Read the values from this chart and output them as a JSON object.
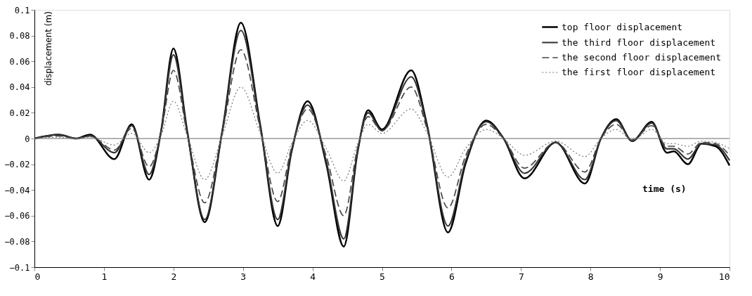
{
  "chart_data": {
    "type": "line",
    "xlabel": "time (s)",
    "ylabel": "displacement (m)",
    "x": [
      0,
      0.35,
      0.6,
      0.8,
      1.15,
      1.4,
      1.65,
      1.82,
      2.0,
      2.2,
      2.45,
      2.7,
      2.97,
      3.25,
      3.5,
      3.7,
      3.93,
      4.2,
      4.45,
      4.65,
      4.8,
      5.0,
      5.42,
      5.65,
      5.95,
      6.2,
      6.5,
      6.75,
      7.05,
      7.5,
      7.92,
      8.15,
      8.37,
      8.6,
      8.88,
      9.1,
      9.2,
      9.4,
      9.6,
      9.8,
      10
    ],
    "series": [
      {
        "name": "top floor displacement",
        "color": "#000000",
        "line_style": "solid",
        "values": [
          0,
          0.003,
          0,
          0.003,
          -0.016,
          0.011,
          -0.032,
          0.005,
          0.07,
          0.005,
          -0.065,
          0.005,
          0.09,
          0.01,
          -0.068,
          -0.01,
          0.029,
          -0.02,
          -0.084,
          -0.01,
          0.022,
          0.007,
          0.053,
          0.01,
          -0.073,
          -0.02,
          0.014,
          0.0,
          -0.031,
          -0.003,
          -0.035,
          0.0,
          0.015,
          -0.002,
          0.013,
          -0.011,
          -0.01,
          -0.02,
          -0.004,
          -0.006,
          -0.021
        ]
      },
      {
        "name": "the third floor displacement",
        "color": "#333333",
        "line_style": "solid",
        "values": [
          0,
          0.003,
          0,
          0.002,
          -0.011,
          0.01,
          -0.028,
          0.005,
          0.065,
          0.004,
          -0.063,
          0.005,
          0.084,
          0.009,
          -0.063,
          -0.009,
          0.026,
          -0.018,
          -0.078,
          -0.009,
          0.02,
          0.006,
          0.048,
          0.009,
          -0.068,
          -0.018,
          0.013,
          0,
          -0.027,
          -0.003,
          -0.032,
          0,
          0.014,
          -0.002,
          0.012,
          -0.008,
          -0.008,
          -0.016,
          -0.004,
          -0.005,
          -0.017
        ]
      },
      {
        "name": "the second floor displacement",
        "color": "#444444",
        "line_style": "dashed",
        "values": [
          0,
          0.002,
          0,
          0.002,
          -0.009,
          0.008,
          -0.022,
          0.004,
          0.053,
          0.003,
          -0.05,
          0.004,
          0.069,
          0.007,
          -0.049,
          -0.007,
          0.023,
          -0.014,
          -0.06,
          -0.007,
          0.017,
          0.006,
          0.04,
          0.007,
          -0.054,
          -0.014,
          0.011,
          0,
          -0.023,
          -0.003,
          -0.026,
          0,
          0.011,
          -0.001,
          0.01,
          -0.006,
          -0.006,
          -0.012,
          -0.003,
          -0.004,
          -0.013
        ]
      },
      {
        "name": "the first floor displacement",
        "color": "#777777",
        "line_style": "dotted",
        "values": [
          0,
          0.001,
          0,
          0.001,
          -0.005,
          0.004,
          -0.011,
          0.002,
          0.029,
          0.002,
          -0.032,
          0.002,
          0.04,
          0.004,
          -0.027,
          -0.004,
          0.014,
          -0.008,
          -0.033,
          -0.004,
          0.011,
          0.004,
          0.023,
          0.004,
          -0.03,
          -0.008,
          0.007,
          0,
          -0.013,
          -0.002,
          -0.014,
          0,
          0.007,
          -0.001,
          0.007,
          -0.004,
          -0.004,
          -0.006,
          -0.002,
          -0.003,
          -0.008
        ]
      }
    ],
    "xlim": [
      0,
      10
    ],
    "xticks": [
      0,
      1,
      2,
      3,
      4,
      5,
      6,
      7,
      8,
      9,
      10
    ],
    "ylim": [
      -0.1,
      0.1
    ],
    "yticks": [
      -0.1,
      -0.08,
      -0.06,
      -0.04,
      -0.02,
      0,
      0.02,
      0.04,
      0.06,
      0.08,
      0.1
    ],
    "ref_lines": [
      {
        "axis": "y",
        "value": 0,
        "color": "#666666"
      }
    ],
    "grid": false,
    "legend": "top right",
    "marker": "none"
  }
}
